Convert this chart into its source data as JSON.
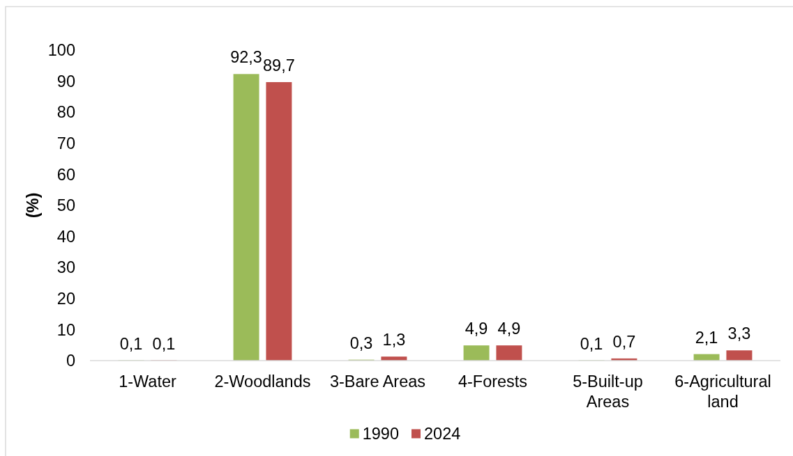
{
  "chart_data": {
    "type": "bar",
    "ylabel": "(%)",
    "categories": [
      "1-Water",
      "2-Woodlands",
      "3-Bare Areas",
      "4-Forests",
      "5-Built-up Areas",
      "6-Agricultural land"
    ],
    "series": [
      {
        "name": "1990",
        "color": "#9bbb59",
        "values": [
          0.1,
          92.3,
          0.3,
          4.9,
          0.1,
          2.1
        ],
        "value_labels": [
          "0,1",
          "92,3",
          "0,3",
          "4,9",
          "0,1",
          "2,1"
        ]
      },
      {
        "name": "2024",
        "color": "#c0504d",
        "values": [
          0.1,
          89.7,
          1.3,
          4.9,
          0.7,
          3.3
        ],
        "value_labels": [
          "0,1",
          "89,7",
          "1,3",
          "4,9",
          "0,7",
          "3,3"
        ]
      }
    ],
    "ylim": [
      0,
      100
    ],
    "yticks": [
      0,
      10,
      20,
      30,
      40,
      50,
      60,
      70,
      80,
      90,
      100
    ],
    "legend": "bottom"
  }
}
